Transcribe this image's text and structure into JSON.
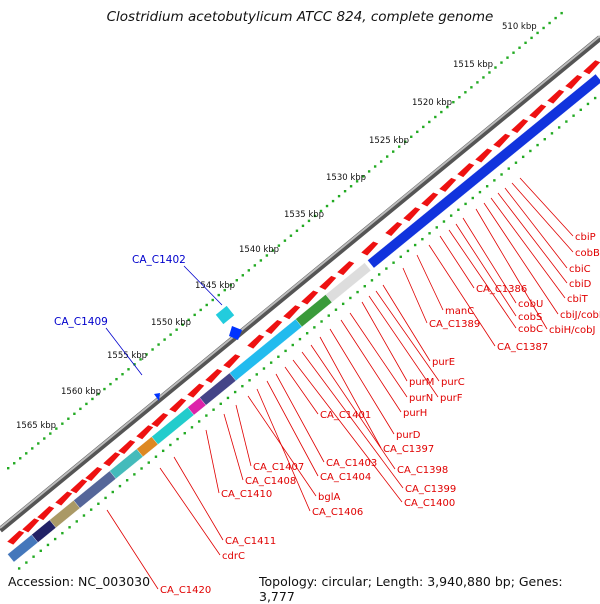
{
  "title": "Clostridium acetobutylicum ATCC 824, complete genome",
  "footer": {
    "accession": "Accession: NC_003030",
    "stats": "Topology: circular; Length: 3,940,880 bp; Genes: 3,777"
  },
  "kbp_ticks": [
    "510 kbp",
    "1515 kbp",
    "1520 kbp",
    "1525 kbp",
    "1530 kbp",
    "1535 kbp",
    "1540 kbp",
    "1545 kbp",
    "1550 kbp",
    "1555 kbp",
    "1560 kbp",
    "1565 kbp"
  ],
  "gene_labels_red": [
    "cbiP",
    "cobB",
    "cbiC",
    "cbiD",
    "cbiT",
    "cbiJ/cobK",
    "cbiH/cobJ",
    "cobU",
    "cobS",
    "cobC",
    "CA_C1386",
    "CA_C1387",
    "manC",
    "CA_C1389",
    "purE",
    "purC",
    "purM",
    "purF",
    "purN",
    "purH",
    "purD",
    "CA_C1397",
    "CA_C1398",
    "CA_C1399",
    "CA_C1400",
    "CA_C1401",
    "CA_C1403",
    "CA_C1404",
    "CA_C1406",
    "bglA",
    "CA_C1407",
    "CA_C1408",
    "CA_C1410",
    "CA_C1411",
    "cdrC",
    "CA_C1420"
  ],
  "gene_labels_blue": [
    "CA_C1402",
    "CA_C1409"
  ],
  "colors": {
    "forward_gene": "#ee1111",
    "cobalamin_cluster": "#1133dd",
    "pur_cluster": "#22bbee",
    "backbone": "#888888",
    "tick_marks": "#22aa22",
    "label_red": "#e00000",
    "label_blue": "#0000cc"
  }
}
